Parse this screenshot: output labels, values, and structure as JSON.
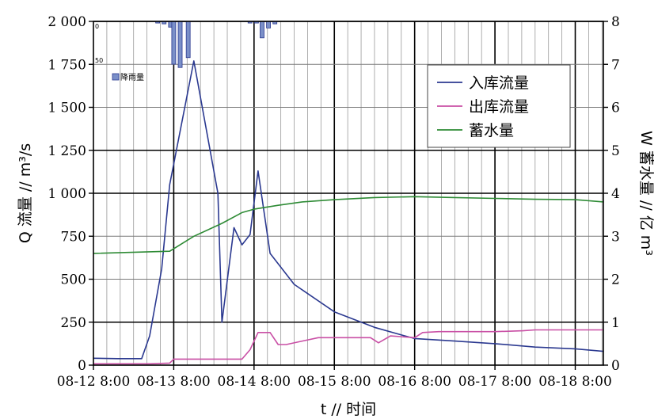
{
  "chart_data": {
    "type": "line",
    "x_labels": [
      "08-12 8:00",
      "08-13 8:00",
      "08-14 8:00",
      "08-15 8:00",
      "08-16 8:00",
      "08-17 8:00",
      "08-18 8:00"
    ],
    "xlabel": "t // 时间",
    "ylabel_left": "Q 流量 // m³/s",
    "ylabel_right": "W 蓄水量 // 亿 m³",
    "y_left": {
      "min": 0,
      "max": 2000,
      "ticks": [
        0,
        250,
        500,
        750,
        1000,
        1250,
        1500,
        1750,
        2000
      ],
      "tick_labels": [
        "0",
        "250",
        "500",
        "750",
        "1 000",
        "1 250",
        "1 500",
        "1 750",
        "2 000"
      ]
    },
    "y_right": {
      "min": 0,
      "max": 8,
      "ticks": [
        0,
        1,
        2,
        3,
        4,
        5,
        6,
        7,
        8
      ],
      "tick_labels": [
        "0",
        "1",
        "2",
        "3",
        "4",
        "5",
        "6",
        "7",
        "8"
      ]
    },
    "x_range_days": [
      0,
      6.35
    ],
    "grid": true,
    "legend_position": "top-right",
    "series": [
      {
        "name": "入库流量",
        "axis": "left",
        "color": "#2b3990",
        "points": [
          [
            0,
            40
          ],
          [
            0.3,
            38
          ],
          [
            0.6,
            38
          ],
          [
            0.7,
            170
          ],
          [
            0.85,
            560
          ],
          [
            0.95,
            1050
          ],
          [
            1.25,
            1770
          ],
          [
            1.55,
            1000
          ],
          [
            1.6,
            250
          ],
          [
            1.75,
            800
          ],
          [
            1.85,
            700
          ],
          [
            1.95,
            760
          ],
          [
            2.05,
            1130
          ],
          [
            2.2,
            650
          ],
          [
            2.5,
            470
          ],
          [
            3.0,
            310
          ],
          [
            3.5,
            220
          ],
          [
            3.8,
            180
          ],
          [
            4.0,
            155
          ],
          [
            4.5,
            140
          ],
          [
            5.0,
            125
          ],
          [
            5.5,
            105
          ],
          [
            6.0,
            95
          ],
          [
            6.35,
            80
          ]
        ]
      },
      {
        "name": "出库流量",
        "axis": "left",
        "color": "#c94fa5",
        "points": [
          [
            0,
            8
          ],
          [
            0.7,
            8
          ],
          [
            0.95,
            12
          ],
          [
            1.0,
            35
          ],
          [
            1.6,
            35
          ],
          [
            1.85,
            35
          ],
          [
            1.95,
            90
          ],
          [
            2.05,
            190
          ],
          [
            2.2,
            190
          ],
          [
            2.3,
            120
          ],
          [
            2.4,
            120
          ],
          [
            2.6,
            140
          ],
          [
            2.8,
            160
          ],
          [
            3.0,
            160
          ],
          [
            3.45,
            160
          ],
          [
            3.55,
            130
          ],
          [
            3.7,
            170
          ],
          [
            4.0,
            160
          ],
          [
            4.1,
            190
          ],
          [
            4.3,
            195
          ],
          [
            5.0,
            195
          ],
          [
            5.35,
            200
          ],
          [
            5.5,
            205
          ],
          [
            6.0,
            205
          ],
          [
            6.35,
            205
          ]
        ]
      },
      {
        "name": "蓄水量",
        "axis": "right",
        "color": "#2e8b35",
        "points": [
          [
            0,
            2.6
          ],
          [
            0.95,
            2.65
          ],
          [
            1.25,
            3.0
          ],
          [
            1.6,
            3.3
          ],
          [
            1.85,
            3.55
          ],
          [
            2.0,
            3.63
          ],
          [
            2.3,
            3.72
          ],
          [
            2.6,
            3.8
          ],
          [
            3.0,
            3.85
          ],
          [
            3.5,
            3.9
          ],
          [
            4.0,
            3.92
          ],
          [
            4.5,
            3.9
          ],
          [
            5.0,
            3.88
          ],
          [
            5.5,
            3.86
          ],
          [
            6.0,
            3.85
          ],
          [
            6.35,
            3.8
          ]
        ]
      }
    ],
    "rainfall": {
      "name": "降雨量",
      "color": "#7a8fc8",
      "scale_labels": [
        "0",
        "50"
      ],
      "scale_max": 50,
      "bars": [
        [
          0.8,
          2
        ],
        [
          0.88,
          3
        ],
        [
          0.96,
          7
        ],
        [
          1.0,
          52
        ],
        [
          1.08,
          56
        ],
        [
          1.18,
          44
        ],
        [
          1.95,
          2
        ],
        [
          2.03,
          2
        ],
        [
          2.1,
          20
        ],
        [
          2.18,
          8
        ],
        [
          2.26,
          3
        ]
      ]
    }
  }
}
